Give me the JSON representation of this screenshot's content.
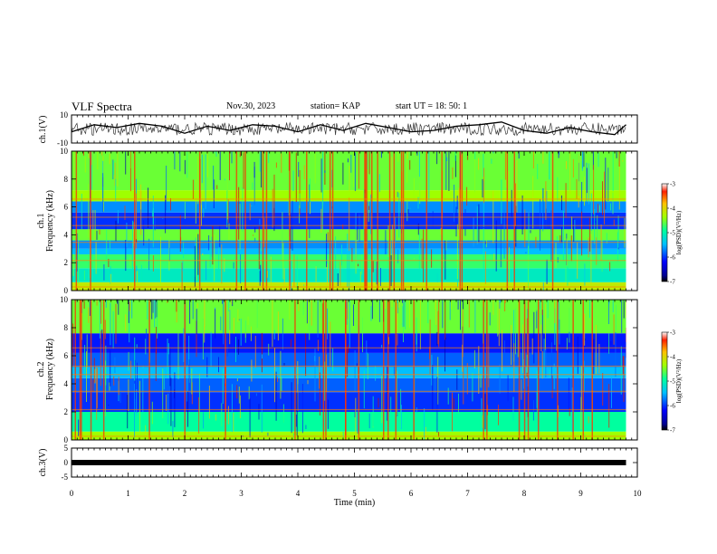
{
  "header": {
    "title": "VLF Spectra",
    "date": "Nov.30, 2023",
    "station": "station= KAP",
    "start": "start  UT  =   18: 50: 1"
  },
  "chart_data": [
    {
      "type": "line",
      "panel": "ch1-waveform",
      "ylabel": "ch.1(V)",
      "ylim": [
        -10,
        10
      ],
      "yticks": [
        "10",
        "-10"
      ],
      "x": [
        0.0,
        0.4,
        0.8,
        1.2,
        1.6,
        2.0,
        2.4,
        2.8,
        3.2,
        3.6,
        4.0,
        4.4,
        4.8,
        5.2,
        5.6,
        6.0,
        6.4,
        6.8,
        7.2,
        7.6,
        8.0,
        8.4,
        8.8,
        9.2,
        9.6,
        9.8
      ],
      "y": [
        -2,
        3,
        1,
        4,
        2,
        -3,
        2,
        -1,
        3,
        2,
        -2,
        3,
        -1,
        4,
        1,
        -2,
        -1,
        2,
        3,
        5,
        -1,
        -3,
        1,
        -2,
        -4,
        3
      ],
      "xlim": [
        0,
        10
      ]
    },
    {
      "type": "heatmap",
      "panel": "ch1-spectrogram",
      "ylabel": "ch.1\nFrequency  (kHz)",
      "ylabel_line1": "ch.1",
      "ylabel_line2": "Frequency  (kHz)",
      "ylim": [
        0,
        10
      ],
      "yticks": [
        "0",
        "2",
        "4",
        "6",
        "8",
        "10"
      ],
      "xlim": [
        0,
        10
      ],
      "value_range": [
        -7,
        -3
      ],
      "colorbar_label": "log(PSD)(V²/Hz)",
      "colorbar_ticks": [
        "-3",
        "-4",
        "-5",
        "-6",
        "-7"
      ],
      "bands": [
        {
          "from": 0.0,
          "to": 0.6,
          "level": -4.2
        },
        {
          "from": 0.6,
          "to": 1.6,
          "level": -5.2
        },
        {
          "from": 1.6,
          "to": 2.6,
          "level": -4.8
        },
        {
          "from": 2.6,
          "to": 3.0,
          "level": -5.6
        },
        {
          "from": 3.0,
          "to": 3.6,
          "level": -5.8
        },
        {
          "from": 3.6,
          "to": 4.4,
          "level": -4.6
        },
        {
          "from": 4.4,
          "to": 5.6,
          "level": -6.2
        },
        {
          "from": 5.6,
          "to": 6.4,
          "level": -5.8
        },
        {
          "from": 6.4,
          "to": 7.2,
          "level": -4.4
        },
        {
          "from": 7.2,
          "to": 10.0,
          "level": -4.6
        }
      ]
    },
    {
      "type": "heatmap",
      "panel": "ch2-spectrogram",
      "ylabel": "ch.2\nFrequency  (kHz)",
      "ylabel_line1": "ch.2",
      "ylabel_line2": "Frequency  (kHz)",
      "ylim": [
        0,
        10
      ],
      "yticks": [
        "0",
        "2",
        "4",
        "6",
        "8",
        "10"
      ],
      "xlim": [
        0,
        10
      ],
      "value_range": [
        -7,
        -3
      ],
      "colorbar_label": "log(PSD)(V²/Hz)",
      "colorbar_ticks": [
        "-3",
        "-4",
        "-5",
        "-6",
        "-7"
      ],
      "bands": [
        {
          "from": 0.0,
          "to": 0.6,
          "level": -4.4
        },
        {
          "from": 0.6,
          "to": 2.0,
          "level": -5.0
        },
        {
          "from": 2.0,
          "to": 3.4,
          "level": -6.2
        },
        {
          "from": 3.4,
          "to": 4.4,
          "level": -6.0
        },
        {
          "from": 4.4,
          "to": 5.2,
          "level": -5.6
        },
        {
          "from": 5.2,
          "to": 6.2,
          "level": -6.0
        },
        {
          "from": 6.2,
          "to": 7.6,
          "level": -6.3
        },
        {
          "from": 7.6,
          "to": 10.0,
          "level": -4.6
        }
      ]
    },
    {
      "type": "line",
      "panel": "ch3-waveform",
      "ylabel": "ch.3(V)",
      "ylim": [
        -5,
        5
      ],
      "yticks": [
        "5",
        "0",
        "-5"
      ],
      "x": [
        0.0,
        9.8
      ],
      "y": [
        0,
        0
      ],
      "xlim": [
        0,
        10
      ]
    }
  ],
  "xaxis": {
    "title": "Time  (min)",
    "ticks": [
      "0",
      "1",
      "2",
      "3",
      "4",
      "5",
      "6",
      "7",
      "8",
      "9",
      "10"
    ]
  }
}
